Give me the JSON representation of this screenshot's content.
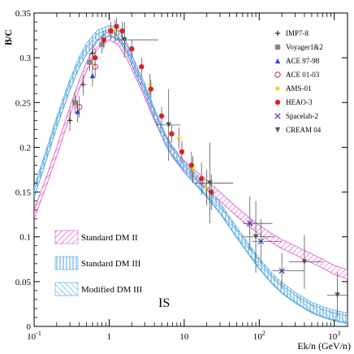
{
  "chart_data": {
    "type": "line",
    "xscale": "log",
    "xlim": [
      0.1,
      1500
    ],
    "ylim": [
      0,
      0.35
    ],
    "ylabel": "B/C",
    "xlabel": "Ek/n (GeV/n)",
    "y_ticks": [
      "0",
      "0.05",
      "0.1",
      "0.15",
      "0.2",
      "0.25",
      "0.3",
      "0.35"
    ],
    "x_ticks": [
      {
        "base": "10",
        "exp": "-1"
      },
      {
        "base": "1",
        "exp": ""
      },
      {
        "base": "10",
        "exp": ""
      },
      {
        "base": "10",
        "exp": "2"
      },
      {
        "base": "10",
        "exp": "3"
      }
    ],
    "annotation": "IS",
    "legend_position": "top-right",
    "bands": [
      {
        "name": "Standard DM II",
        "color": "#e040c8",
        "x": [
          0.1,
          0.15,
          0.2,
          0.3,
          0.4,
          0.5,
          0.7,
          1.0,
          1.3,
          1.7,
          2.2,
          3,
          4,
          5.5,
          7,
          10,
          15,
          20,
          30,
          50,
          70,
          100,
          150,
          200,
          300,
          500,
          700,
          1000,
          1500
        ],
        "y": [
          0.125,
          0.165,
          0.195,
          0.24,
          0.27,
          0.29,
          0.315,
          0.325,
          0.32,
          0.305,
          0.285,
          0.26,
          0.235,
          0.21,
          0.195,
          0.18,
          0.167,
          0.158,
          0.145,
          0.128,
          0.118,
          0.108,
          0.098,
          0.092,
          0.085,
          0.076,
          0.07,
          0.063,
          0.058
        ]
      },
      {
        "name": "Standard DM III",
        "color": "#4aa6e0",
        "x": [
          0.1,
          0.15,
          0.2,
          0.3,
          0.4,
          0.5,
          0.7,
          1.0,
          1.3,
          1.7,
          2.2,
          3,
          4,
          5.5,
          7,
          10,
          15,
          20,
          30,
          50,
          70,
          100,
          150,
          200,
          300,
          500,
          700,
          1000,
          1500
        ],
        "y": [
          0.15,
          0.195,
          0.228,
          0.27,
          0.295,
          0.31,
          0.325,
          0.33,
          0.327,
          0.312,
          0.29,
          0.265,
          0.238,
          0.21,
          0.195,
          0.178,
          0.162,
          0.15,
          0.132,
          0.105,
          0.088,
          0.07,
          0.053,
          0.043,
          0.032,
          0.021,
          0.016,
          0.012,
          0.009
        ]
      },
      {
        "name": "Modified DM III",
        "color": "#4aa6e0",
        "x": [
          0.1,
          0.15,
          0.2,
          0.3,
          0.4,
          0.5,
          0.7,
          1.0,
          1.3,
          1.7,
          2.2,
          3,
          4,
          5.5,
          7,
          10,
          15,
          20,
          30,
          50,
          70,
          100,
          150,
          200,
          300,
          500,
          700,
          1000,
          1500
        ],
        "y": [
          0.148,
          0.193,
          0.226,
          0.268,
          0.293,
          0.308,
          0.323,
          0.328,
          0.326,
          0.311,
          0.289,
          0.264,
          0.237,
          0.209,
          0.194,
          0.177,
          0.161,
          0.149,
          0.131,
          0.104,
          0.087,
          0.069,
          0.052,
          0.042,
          0.031,
          0.02,
          0.015,
          0.011,
          0.008
        ]
      }
    ],
    "series": [
      {
        "name": "IMP7-8",
        "marker": "plus",
        "color": "#333333",
        "points": [
          {
            "x": 0.3,
            "y": 0.23,
            "ey": 0.012
          },
          {
            "x": 0.45,
            "y": 0.27,
            "ey": 0.012
          },
          {
            "x": 0.6,
            "y": 0.305,
            "ey": 0.012
          }
        ]
      },
      {
        "name": "Voyager1&2",
        "marker": "square",
        "color": "#888888",
        "points": [
          {
            "x": 0.35,
            "y": 0.25,
            "ey": 0.012
          },
          {
            "x": 0.55,
            "y": 0.295,
            "ey": 0.01
          },
          {
            "x": 0.8,
            "y": 0.315,
            "ey": 0.01
          }
        ]
      },
      {
        "name": "ACE 97-98",
        "marker": "triangle",
        "color": "#3344cc",
        "points": [
          {
            "x": 0.38,
            "y": 0.24,
            "ey": 0.012
          },
          {
            "x": 0.6,
            "y": 0.28,
            "ey": 0.012
          }
        ]
      },
      {
        "name": "ACE 01-03",
        "marker": "circle-open",
        "color": "#cc3333",
        "points": [
          {
            "x": 0.4,
            "y": 0.245,
            "ey": 0.012
          },
          {
            "x": 0.65,
            "y": 0.29,
            "ey": 0.012
          }
        ]
      },
      {
        "name": "AMS-01",
        "marker": "star",
        "color": "#f2c500",
        "points": [
          {
            "x": 1.2,
            "y": 0.33,
            "ey": 0.012
          },
          {
            "x": 3.5,
            "y": 0.27,
            "ey": 0.012
          },
          {
            "x": 8.5,
            "y": 0.21,
            "ey": 0.012
          },
          {
            "x": 13,
            "y": 0.175,
            "ey": 0.015
          },
          {
            "x": 20,
            "y": 0.155,
            "ey": 0.02
          }
        ]
      },
      {
        "name": "HEAO-3",
        "marker": "circle",
        "color": "#e02020",
        "points": [
          {
            "x": 0.65,
            "y": 0.3,
            "ey": 0.01
          },
          {
            "x": 0.85,
            "y": 0.32,
            "ey": 0.01
          },
          {
            "x": 1.05,
            "y": 0.33,
            "ey": 0.01
          },
          {
            "x": 1.25,
            "y": 0.335,
            "ey": 0.01
          },
          {
            "x": 1.5,
            "y": 0.33,
            "ey": 0.01
          },
          {
            "x": 2.0,
            "y": 0.31,
            "ey": 0.01
          },
          {
            "x": 2.7,
            "y": 0.29,
            "ey": 0.01
          },
          {
            "x": 3.6,
            "y": 0.265,
            "ey": 0.01
          },
          {
            "x": 5.0,
            "y": 0.235,
            "ey": 0.01
          },
          {
            "x": 6.8,
            "y": 0.215,
            "ey": 0.01
          },
          {
            "x": 9.3,
            "y": 0.195,
            "ey": 0.012
          },
          {
            "x": 12.5,
            "y": 0.18,
            "ey": 0.015
          },
          {
            "x": 17,
            "y": 0.165,
            "ey": 0.018
          },
          {
            "x": 23,
            "y": 0.15,
            "ey": 0.02
          }
        ]
      },
      {
        "name": "Spacelab-2",
        "marker": "x",
        "color": "#3344cc",
        "points": [
          {
            "x": 75,
            "y": 0.115,
            "ey": 0.03,
            "xlo": 60,
            "xhi": 150
          },
          {
            "x": 105,
            "y": 0.095,
            "ey": 0.025,
            "xlo": 80,
            "xhi": 200
          },
          {
            "x": 200,
            "y": 0.062,
            "ey": 0.02,
            "xlo": 150,
            "xhi": 400
          }
        ]
      },
      {
        "name": "CREAM 04",
        "marker": "triangle-down",
        "color": "#555555",
        "points": [
          {
            "x": 1.6,
            "y": 0.32,
            "ey": 0.02,
            "xlo": 1.2,
            "xhi": 4.5
          },
          {
            "x": 6.2,
            "y": 0.225,
            "ey": 0.04,
            "xlo": 4.2,
            "xhi": 9.0
          },
          {
            "x": 22,
            "y": 0.16,
            "ey": 0.045,
            "xlo": 14,
            "xhi": 45
          },
          {
            "x": 90,
            "y": 0.1,
            "ey": 0.04,
            "xlo": 60,
            "xhi": 160
          },
          {
            "x": 400,
            "y": 0.072,
            "ey": 0.03,
            "xlo": 250,
            "xhi": 700
          },
          {
            "x": 1100,
            "y": 0.035,
            "ey": 0.025,
            "xlo": 800,
            "xhi": 1500
          }
        ]
      }
    ]
  }
}
